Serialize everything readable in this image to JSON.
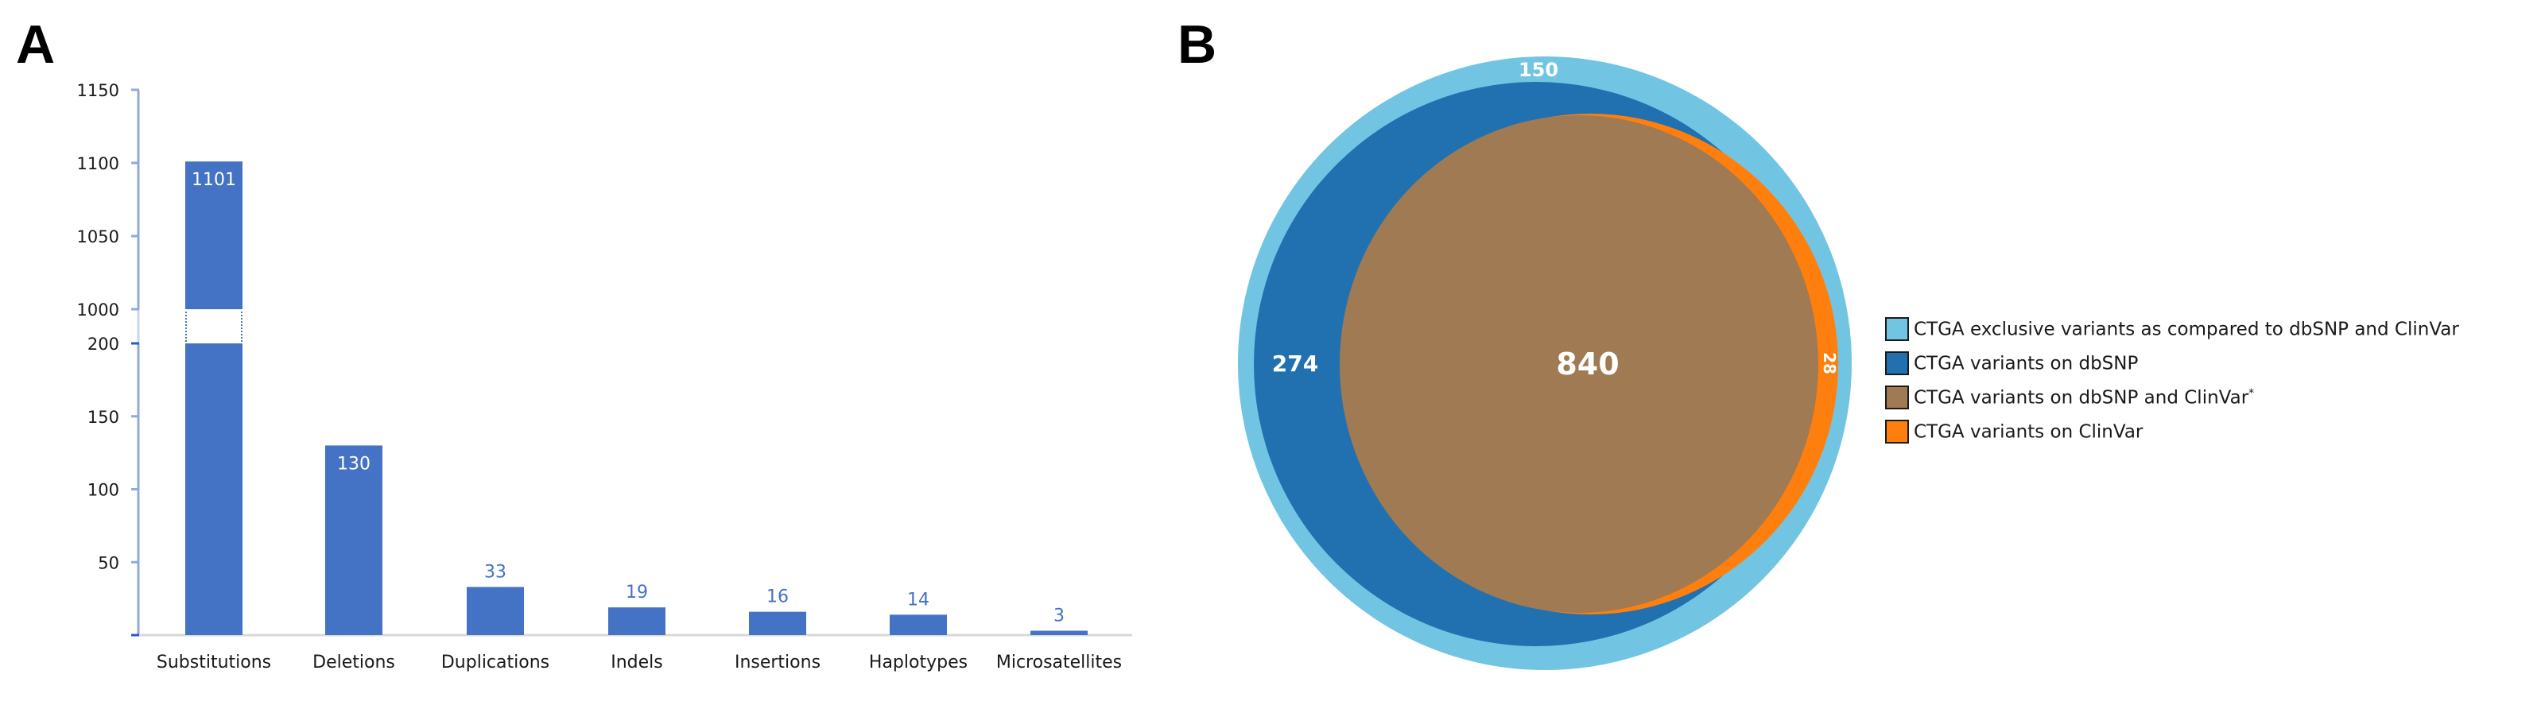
{
  "panels": {
    "a_label": "A",
    "b_label": "B"
  },
  "chart_data": [
    {
      "type": "bar",
      "title": "",
      "xlabel": "",
      "ylabel": "",
      "categories": [
        "Substitutions",
        "Deletions",
        "Duplications",
        "Indels",
        "Insertions",
        "Haplotypes",
        "Microsatellites"
      ],
      "values": [
        1101,
        130,
        33,
        19,
        16,
        14,
        3
      ],
      "value_labels": [
        "1101",
        "130",
        "33",
        "19",
        "16",
        "14",
        "3"
      ],
      "y_axis": {
        "broken": true,
        "lower_range": [
          0,
          200
        ],
        "upper_range": [
          1000,
          1150
        ],
        "ticks": [
          "1150",
          "1100",
          "1050",
          "1000",
          "200",
          "150",
          "100",
          "50"
        ]
      },
      "bar_color": "#4472C4",
      "grid": false,
      "legend": null
    },
    {
      "type": "venn",
      "regions": [
        {
          "label": "CTGA exclusive variants as compared to dbSNP and ClinVar",
          "value": 150,
          "color": "#72C5E2"
        },
        {
          "label": "CTGA variants on dbSNP",
          "value": 274,
          "color": "#2171B1"
        },
        {
          "label": "CTGA variants on dbSNP and ClinVar",
          "value": 840,
          "color": "#A07A52",
          "footnote_mark": "*"
        },
        {
          "label": "CTGA variants on ClinVar",
          "value": 28,
          "color": "#FF7F0E"
        }
      ],
      "legend_position": "right"
    }
  ],
  "venn_numbers": {
    "outer": "150",
    "dbsnp": "274",
    "both": "840",
    "clinvar": "28"
  },
  "legend": {
    "items": [
      {
        "text": "CTGA exclusive variants as compared to dbSNP and ClinVar",
        "mark": "",
        "color": "#72C5E2"
      },
      {
        "text": "CTGA variants on dbSNP",
        "mark": "",
        "color": "#2171B1"
      },
      {
        "text": "CTGA variants on dbSNP and ClinVar",
        "mark": "*",
        "color": "#A07A52"
      },
      {
        "text": "CTGA variants on ClinVar",
        "mark": "",
        "color": "#FF7F0E"
      }
    ]
  }
}
